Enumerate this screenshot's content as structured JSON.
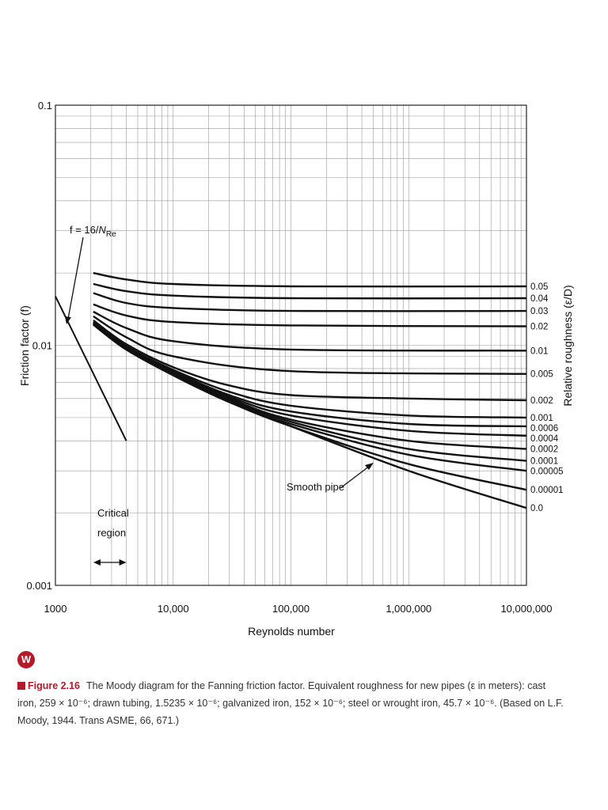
{
  "chart_data": {
    "type": "line",
    "title": "",
    "xlabel": "Reynolds number",
    "ylabel": "Friction factor (f)",
    "right_label": "Relative roughness (ε/D)",
    "x_scale": "log",
    "y_scale": "log",
    "xlim": [
      1000,
      10000000
    ],
    "ylim": [
      0.001,
      0.1
    ],
    "grid": true,
    "x_ticks": [
      "1000",
      "10,000",
      "100,000",
      "1,000,000",
      "10,000,000"
    ],
    "y_ticks": [
      "0.1",
      "0.01",
      "0.001"
    ],
    "series": [
      {
        "name": "0.05",
        "points": [
          [
            2100,
            0.02
          ],
          [
            4000,
            0.0188
          ],
          [
            10000,
            0.018
          ],
          [
            100000,
            0.0176
          ],
          [
            10000000,
            0.0176
          ]
        ]
      },
      {
        "name": "0.04",
        "points": [
          [
            2100,
            0.018
          ],
          [
            4000,
            0.0168
          ],
          [
            10000,
            0.0161
          ],
          [
            100000,
            0.0157
          ],
          [
            10000000,
            0.0157
          ]
        ]
      },
      {
        "name": "0.03",
        "points": [
          [
            2100,
            0.0165
          ],
          [
            4000,
            0.015
          ],
          [
            10000,
            0.0143
          ],
          [
            100000,
            0.0139
          ],
          [
            10000000,
            0.0139
          ]
        ]
      },
      {
        "name": "0.02",
        "points": [
          [
            2100,
            0.0148
          ],
          [
            4000,
            0.0133
          ],
          [
            10000,
            0.0125
          ],
          [
            100000,
            0.0121
          ],
          [
            10000000,
            0.012
          ]
        ]
      },
      {
        "name": "0.01",
        "points": [
          [
            2100,
            0.0138
          ],
          [
            4000,
            0.0118
          ],
          [
            10000,
            0.0104
          ],
          [
            100000,
            0.0096
          ],
          [
            10000000,
            0.0095
          ]
        ]
      },
      {
        "name": "0.005",
        "points": [
          [
            2100,
            0.0132
          ],
          [
            4000,
            0.0108
          ],
          [
            10000,
            0.009
          ],
          [
            100000,
            0.0078
          ],
          [
            10000000,
            0.0076
          ]
        ]
      },
      {
        "name": "0.002",
        "points": [
          [
            2100,
            0.0127
          ],
          [
            4000,
            0.0101
          ],
          [
            10000,
            0.0081
          ],
          [
            30000,
            0.0068
          ],
          [
            100000,
            0.0062
          ],
          [
            1000000,
            0.006
          ],
          [
            10000000,
            0.0059
          ]
        ]
      },
      {
        "name": "0.001",
        "points": [
          [
            2100,
            0.0125
          ],
          [
            4000,
            0.0099
          ],
          [
            10000,
            0.0079
          ],
          [
            30000,
            0.0064
          ],
          [
            100000,
            0.0056
          ],
          [
            1000000,
            0.0051
          ],
          [
            10000000,
            0.005
          ]
        ]
      },
      {
        "name": "0.0006",
        "points": [
          [
            2100,
            0.0124
          ],
          [
            4000,
            0.0098
          ],
          [
            10000,
            0.0078
          ],
          [
            30000,
            0.0062
          ],
          [
            100000,
            0.0053
          ],
          [
            1000000,
            0.0047
          ],
          [
            10000000,
            0.0046
          ]
        ]
      },
      {
        "name": "0.0004",
        "points": [
          [
            2100,
            0.0123
          ],
          [
            4000,
            0.0097
          ],
          [
            10000,
            0.0077
          ],
          [
            30000,
            0.0061
          ],
          [
            100000,
            0.0051
          ],
          [
            1000000,
            0.0044
          ],
          [
            10000000,
            0.0042
          ]
        ]
      },
      {
        "name": "0.0002",
        "points": [
          [
            2100,
            0.0123
          ],
          [
            4000,
            0.0097
          ],
          [
            10000,
            0.0076
          ],
          [
            30000,
            0.006
          ],
          [
            100000,
            0.0049
          ],
          [
            1000000,
            0.004
          ],
          [
            10000000,
            0.0037
          ]
        ]
      },
      {
        "name": "0.0001",
        "points": [
          [
            2100,
            0.0122
          ],
          [
            4000,
            0.0096
          ],
          [
            10000,
            0.0076
          ],
          [
            30000,
            0.0059
          ],
          [
            100000,
            0.0048
          ],
          [
            1000000,
            0.0037
          ],
          [
            10000000,
            0.0033
          ]
        ]
      },
      {
        "name": "0.00005",
        "points": [
          [
            2100,
            0.0122
          ],
          [
            4000,
            0.0096
          ],
          [
            10000,
            0.0075
          ],
          [
            30000,
            0.0058
          ],
          [
            100000,
            0.0047
          ],
          [
            1000000,
            0.0035
          ],
          [
            10000000,
            0.003
          ]
        ]
      },
      {
        "name": "0.00001",
        "points": [
          [
            2100,
            0.0122
          ],
          [
            4000,
            0.0096
          ],
          [
            10000,
            0.0075
          ],
          [
            30000,
            0.0058
          ],
          [
            100000,
            0.0046
          ],
          [
            1000000,
            0.0032
          ],
          [
            10000000,
            0.0025
          ]
        ]
      },
      {
        "name": "0.0",
        "points": [
          [
            2100,
            0.0122
          ],
          [
            4000,
            0.0096
          ],
          [
            10000,
            0.0075
          ],
          [
            30000,
            0.0058
          ],
          [
            100000,
            0.0046
          ],
          [
            1000000,
            0.003
          ],
          [
            10000000,
            0.0021
          ]
        ]
      }
    ],
    "laminar": {
      "points": [
        [
          1000,
          0.016
        ],
        [
          4000,
          0.004
        ]
      ]
    },
    "annotations": {
      "laminar_pre": "f = 16/",
      "laminar_n": "N",
      "laminar_sub": "Re",
      "critical_line1": "Critical",
      "critical_line2": "region",
      "smooth": "Smooth pipe"
    },
    "critical_region": [
      2100,
      4000
    ]
  },
  "badge": "W",
  "caption": {
    "figure_label": "Figure 2.16",
    "text": "The Moody diagram for the Fanning friction factor. Equivalent roughness for new pipes (ε in meters): cast iron, 259 × 10⁻⁶; drawn tubing, 1.5235 × 10⁻⁶; galvanized iron, 152 × 10⁻⁶; steel or wrought iron, 45.7 × 10⁻⁶. (Based on L.F. Moody, 1944. Trans ASME, 66, 671.)"
  }
}
